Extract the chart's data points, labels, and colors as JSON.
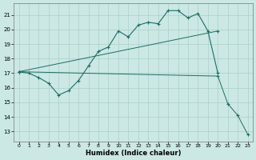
{
  "xlabel": "Humidex (Indice chaleur)",
  "xlim": [
    -0.5,
    23.5
  ],
  "ylim": [
    12.3,
    21.8
  ],
  "xticks": [
    0,
    1,
    2,
    3,
    4,
    5,
    6,
    7,
    8,
    9,
    10,
    11,
    12,
    13,
    14,
    15,
    16,
    17,
    18,
    19,
    20,
    21,
    22,
    23
  ],
  "yticks": [
    13,
    14,
    15,
    16,
    17,
    18,
    19,
    20,
    21
  ],
  "bg_color": "#cbe8e4",
  "grid_color": "#aacfca",
  "line_color": "#1a6e65",
  "line1_x": [
    0,
    1,
    2,
    3,
    4,
    5,
    6,
    7,
    8,
    9,
    10,
    11,
    12,
    13,
    14,
    15,
    16,
    17,
    18,
    19,
    20
  ],
  "line1_y": [
    17.1,
    17.0,
    16.7,
    16.3,
    15.5,
    15.8,
    16.5,
    17.5,
    18.5,
    18.8,
    19.9,
    19.5,
    20.3,
    20.5,
    20.4,
    21.3,
    21.3,
    20.8,
    21.1,
    19.9,
    17.0
  ],
  "line2_x": [
    0,
    20
  ],
  "line2_y": [
    17.1,
    19.9
  ],
  "line3_x": [
    0,
    20,
    21,
    22,
    23
  ],
  "line3_y": [
    17.1,
    16.8,
    14.9,
    14.1,
    12.8
  ]
}
